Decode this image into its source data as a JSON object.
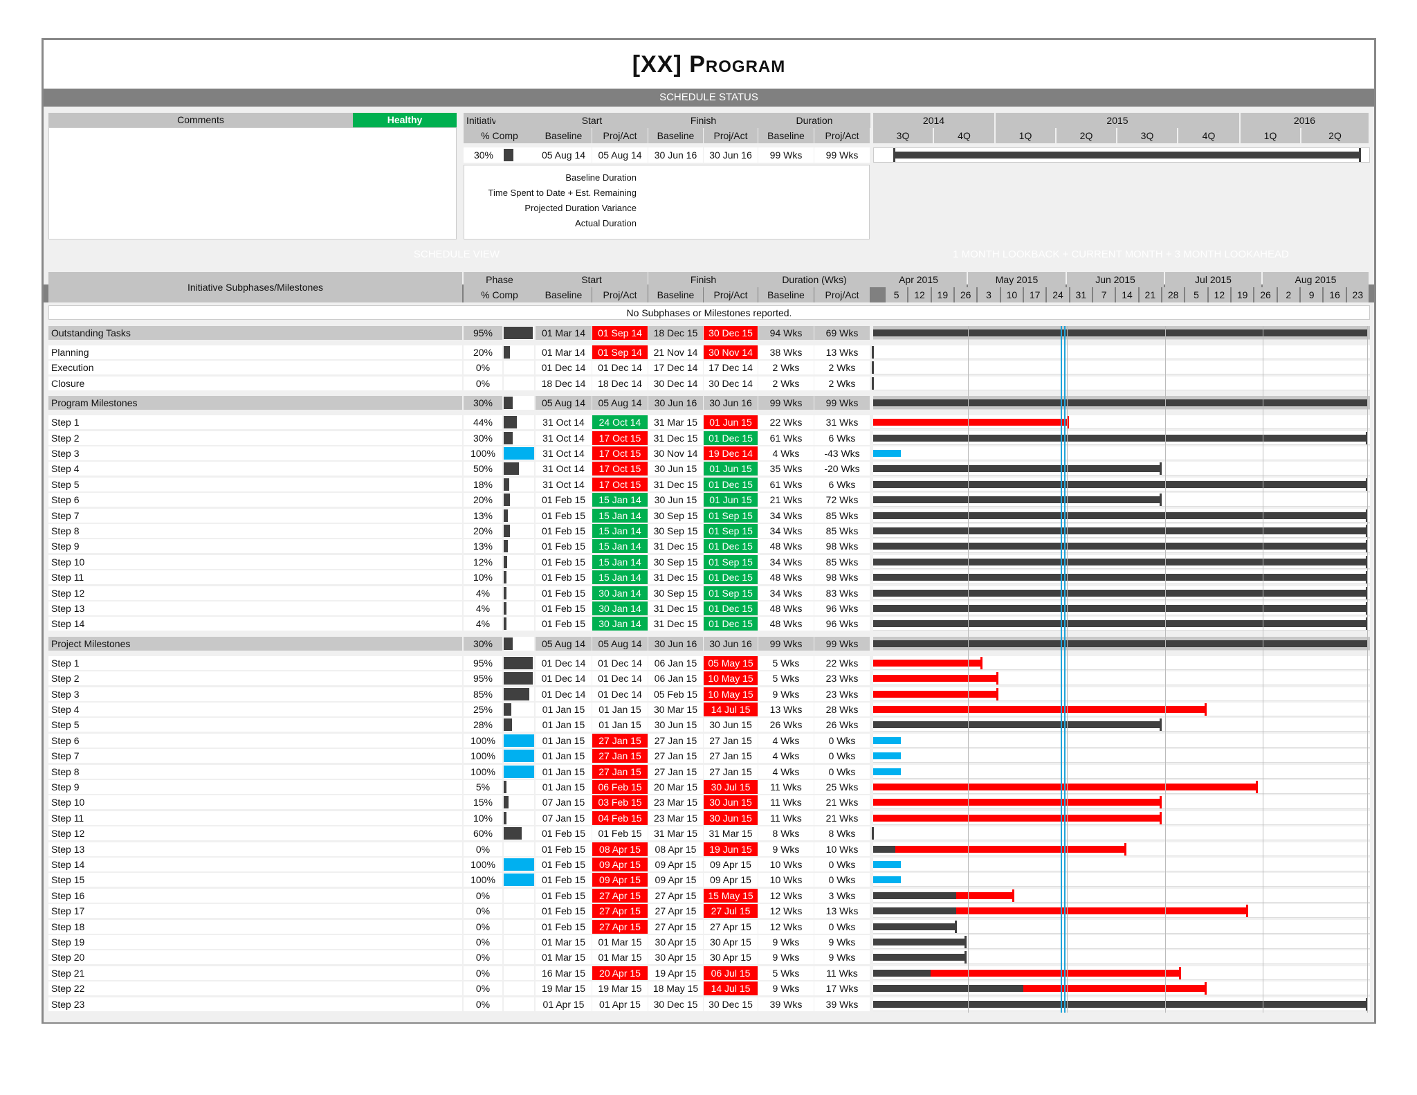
{
  "title_prefix": "[XX] ",
  "title_word": "Program",
  "schedule_status_label": "SCHEDULE STATUS",
  "schedule_view_label": "SCHEDULE VIEW",
  "lookahead_label": "1 MONTH LOOKBACK + CURRENT MONTH + 3 MONTH LOOKAHEAD",
  "status": {
    "comments_label": "Comments",
    "health": "Healthy",
    "h_initiative": "Initiative",
    "h_pct": "% Comp",
    "h_start": "Start",
    "h_finish": "Finish",
    "h_duration": "Duration",
    "h_baseline": "Baseline",
    "h_projact": "Proj/Act",
    "row": {
      "pct": "30%",
      "pct_val": 30,
      "start_b": "05 Aug 14",
      "start_p": "05 Aug 14",
      "finish_b": "30 Jun 16",
      "finish_p": "30 Jun 16",
      "dur_b": "99 Wks",
      "dur_p": "99 Wks"
    },
    "legend": [
      "Baseline Duration",
      "Time Spent to Date + Est. Remaining",
      "Projected Duration Variance",
      "Actual Duration"
    ],
    "years": [
      "2014",
      "2015",
      "2016"
    ],
    "quarters": [
      "3Q",
      "4Q",
      "1Q",
      "2Q",
      "3Q",
      "4Q",
      "1Q",
      "2Q"
    ]
  },
  "view": {
    "h_sub": "Initiative Subphases/Milestones",
    "h_phase": "Phase",
    "h_pct": "% Comp",
    "h_start": "Start",
    "h_finish": "Finish",
    "h_duration": "Duration (Wks)",
    "h_baseline": "Baseline",
    "h_projact": "Proj/Act",
    "no_sub": "No Subphases or Milestones reported.",
    "months": [
      "Apr 2015",
      "May 2015",
      "Jun 2015",
      "Jul 2015",
      "Aug 2015"
    ],
    "weeks": [
      "5",
      "12",
      "19",
      "26",
      "3",
      "10",
      "17",
      "24",
      "31",
      "7",
      "14",
      "21",
      "28",
      "5",
      "12",
      "19",
      "26",
      "2",
      "9",
      "16",
      "23"
    ]
  },
  "groups": [
    {
      "name": "Outstanding Tasks",
      "pct": "95%",
      "p": 95,
      "sb": "01 Mar 14",
      "sp": "01 Sep 14",
      "spc": "red",
      "fb": "18 Dec 15",
      "fp": "30 Dec 15",
      "fpc": "red",
      "db": "94 Wks",
      "dp": "69 Wks",
      "rows": [
        {
          "name": "Planning",
          "pct": "20%",
          "p": 20,
          "sb": "01 Mar 14",
          "sp": "01 Sep 14",
          "spc": "red",
          "fb": "21 Nov 14",
          "fp": "30 Nov 14",
          "fpc": "red",
          "db": "38 Wks",
          "dp": "13 Wks"
        },
        {
          "name": "Execution",
          "pct": "0%",
          "p": 0,
          "sb": "01 Dec 14",
          "sp": "01 Dec 14",
          "spc": "",
          "fb": "17 Dec 14",
          "fp": "17 Dec 14",
          "fpc": "",
          "db": "2 Wks",
          "dp": "2 Wks"
        },
        {
          "name": "Closure",
          "pct": "0%",
          "p": 0,
          "sb": "18 Dec 14",
          "sp": "18 Dec 14",
          "spc": "",
          "fb": "30 Dec 14",
          "fp": "30 Dec 14",
          "fpc": "",
          "db": "2 Wks",
          "dp": "2 Wks"
        }
      ]
    },
    {
      "name": "Program Milestones",
      "pct": "30%",
      "p": 30,
      "sb": "05 Aug 14",
      "sp": "05 Aug 14",
      "spc": "",
      "fb": "30 Jun 16",
      "fp": "30 Jun 16",
      "fpc": "",
      "db": "99 Wks",
      "dp": "99 Wks",
      "rows": [
        {
          "name": "Step 1",
          "pct": "44%",
          "p": 44,
          "sb": "31 Oct 14",
          "sp": "24 Oct 14",
          "spc": "grn",
          "fb": "31 Mar 15",
          "fp": "01 Jun 15",
          "fpc": "red",
          "db": "22 Wks",
          "dp": "31 Wks"
        },
        {
          "name": "Step 2",
          "pct": "30%",
          "p": 30,
          "sb": "31 Oct 14",
          "sp": "17 Oct 15",
          "spc": "red",
          "fb": "31 Dec 15",
          "fp": "01 Dec 15",
          "fpc": "grn",
          "db": "61 Wks",
          "dp": "6 Wks"
        },
        {
          "name": "Step 3",
          "pct": "100%",
          "p": 100,
          "sb": "31 Oct 14",
          "sp": "17 Oct 15",
          "spc": "red",
          "fb": "30 Nov 14",
          "fp": "19 Dec 14",
          "fpc": "red",
          "db": "4 Wks",
          "dp": "-43 Wks"
        },
        {
          "name": "Step 4",
          "pct": "50%",
          "p": 50,
          "sb": "31 Oct 14",
          "sp": "17 Oct 15",
          "spc": "red",
          "fb": "30 Jun 15",
          "fp": "01 Jun 15",
          "fpc": "grn",
          "db": "35 Wks",
          "dp": "-20 Wks"
        },
        {
          "name": "Step 5",
          "pct": "18%",
          "p": 18,
          "sb": "31 Oct 14",
          "sp": "17 Oct 15",
          "spc": "red",
          "fb": "31 Dec 15",
          "fp": "01 Dec 15",
          "fpc": "grn",
          "db": "61 Wks",
          "dp": "6 Wks"
        },
        {
          "name": "Step 6",
          "pct": "20%",
          "p": 20,
          "sb": "01 Feb 15",
          "sp": "15 Jan 14",
          "spc": "grn",
          "fb": "30 Jun 15",
          "fp": "01 Jun 15",
          "fpc": "grn",
          "db": "21 Wks",
          "dp": "72 Wks"
        },
        {
          "name": "Step 7",
          "pct": "13%",
          "p": 13,
          "sb": "01 Feb 15",
          "sp": "15 Jan 14",
          "spc": "grn",
          "fb": "30 Sep 15",
          "fp": "01 Sep 15",
          "fpc": "grn",
          "db": "34 Wks",
          "dp": "85 Wks"
        },
        {
          "name": "Step 8",
          "pct": "20%",
          "p": 20,
          "sb": "01 Feb 15",
          "sp": "15 Jan 14",
          "spc": "grn",
          "fb": "30 Sep 15",
          "fp": "01 Sep 15",
          "fpc": "grn",
          "db": "34 Wks",
          "dp": "85 Wks"
        },
        {
          "name": "Step 9",
          "pct": "13%",
          "p": 13,
          "sb": "01 Feb 15",
          "sp": "15 Jan 14",
          "spc": "grn",
          "fb": "31 Dec 15",
          "fp": "01 Dec 15",
          "fpc": "grn",
          "db": "48 Wks",
          "dp": "98 Wks"
        },
        {
          "name": "Step 10",
          "pct": "12%",
          "p": 12,
          "sb": "01 Feb 15",
          "sp": "15 Jan 14",
          "spc": "grn",
          "fb": "30 Sep 15",
          "fp": "01 Sep 15",
          "fpc": "grn",
          "db": "34 Wks",
          "dp": "85 Wks"
        },
        {
          "name": "Step 11",
          "pct": "10%",
          "p": 10,
          "sb": "01 Feb 15",
          "sp": "15 Jan 14",
          "spc": "grn",
          "fb": "31 Dec 15",
          "fp": "01 Dec 15",
          "fpc": "grn",
          "db": "48 Wks",
          "dp": "98 Wks"
        },
        {
          "name": "Step 12",
          "pct": "4%",
          "p": 4,
          "sb": "01 Feb 15",
          "sp": "30 Jan 14",
          "spc": "grn",
          "fb": "30 Sep 15",
          "fp": "01 Sep 15",
          "fpc": "grn",
          "db": "34 Wks",
          "dp": "83 Wks"
        },
        {
          "name": "Step 13",
          "pct": "4%",
          "p": 4,
          "sb": "01 Feb 15",
          "sp": "30 Jan 14",
          "spc": "grn",
          "fb": "31 Dec 15",
          "fp": "01 Dec 15",
          "fpc": "grn",
          "db": "48 Wks",
          "dp": "96 Wks"
        },
        {
          "name": "Step 14",
          "pct": "4%",
          "p": 4,
          "sb": "01 Feb 15",
          "sp": "30 Jan 14",
          "spc": "grn",
          "fb": "31 Dec 15",
          "fp": "01 Dec 15",
          "fpc": "grn",
          "db": "48 Wks",
          "dp": "96 Wks"
        }
      ]
    },
    {
      "name": "Project Milestones",
      "pct": "30%",
      "p": 30,
      "sb": "05 Aug 14",
      "sp": "05 Aug 14",
      "spc": "",
      "fb": "30 Jun 16",
      "fp": "30 Jun 16",
      "fpc": "",
      "db": "99 Wks",
      "dp": "99 Wks",
      "rows": [
        {
          "name": "Step 1",
          "pct": "95%",
          "p": 95,
          "sb": "01 Dec 14",
          "sp": "01 Dec 14",
          "spc": "",
          "fb": "06 Jan 15",
          "fp": "05 May 15",
          "fpc": "red",
          "db": "5 Wks",
          "dp": "22 Wks"
        },
        {
          "name": "Step 2",
          "pct": "95%",
          "p": 95,
          "sb": "01 Dec 14",
          "sp": "01 Dec 14",
          "spc": "",
          "fb": "06 Jan 15",
          "fp": "10 May 15",
          "fpc": "red",
          "db": "5 Wks",
          "dp": "23 Wks"
        },
        {
          "name": "Step 3",
          "pct": "85%",
          "p": 85,
          "sb": "01 Dec 14",
          "sp": "01 Dec 14",
          "spc": "",
          "fb": "05 Feb 15",
          "fp": "10 May 15",
          "fpc": "red",
          "db": "9 Wks",
          "dp": "23 Wks"
        },
        {
          "name": "Step 4",
          "pct": "25%",
          "p": 25,
          "sb": "01 Jan 15",
          "sp": "01 Jan 15",
          "spc": "",
          "fb": "30 Mar 15",
          "fp": "14 Jul 15",
          "fpc": "red",
          "db": "13 Wks",
          "dp": "28 Wks"
        },
        {
          "name": "Step 5",
          "pct": "28%",
          "p": 28,
          "sb": "01 Jan 15",
          "sp": "01 Jan 15",
          "spc": "",
          "fb": "30 Jun 15",
          "fp": "30 Jun 15",
          "fpc": "",
          "db": "26 Wks",
          "dp": "26 Wks"
        },
        {
          "name": "Step 6",
          "pct": "100%",
          "p": 100,
          "sb": "01 Jan 15",
          "sp": "27 Jan 15",
          "spc": "red",
          "fb": "27 Jan 15",
          "fp": "27 Jan 15",
          "fpc": "",
          "db": "4 Wks",
          "dp": "0 Wks"
        },
        {
          "name": "Step 7",
          "pct": "100%",
          "p": 100,
          "sb": "01 Jan 15",
          "sp": "27 Jan 15",
          "spc": "red",
          "fb": "27 Jan 15",
          "fp": "27 Jan 15",
          "fpc": "",
          "db": "4 Wks",
          "dp": "0 Wks"
        },
        {
          "name": "Step 8",
          "pct": "100%",
          "p": 100,
          "sb": "01 Jan 15",
          "sp": "27 Jan 15",
          "spc": "red",
          "fb": "27 Jan 15",
          "fp": "27 Jan 15",
          "fpc": "",
          "db": "4 Wks",
          "dp": "0 Wks"
        },
        {
          "name": "Step 9",
          "pct": "5%",
          "p": 5,
          "sb": "01 Jan 15",
          "sp": "06 Feb 15",
          "spc": "red",
          "fb": "20 Mar 15",
          "fp": "30 Jul 15",
          "fpc": "red",
          "db": "11 Wks",
          "dp": "25 Wks"
        },
        {
          "name": "Step 10",
          "pct": "15%",
          "p": 15,
          "sb": "07 Jan 15",
          "sp": "03 Feb 15",
          "spc": "red",
          "fb": "23 Mar 15",
          "fp": "30 Jun 15",
          "fpc": "red",
          "db": "11 Wks",
          "dp": "21 Wks"
        },
        {
          "name": "Step 11",
          "pct": "10%",
          "p": 10,
          "sb": "07 Jan 15",
          "sp": "04 Feb 15",
          "spc": "red",
          "fb": "23 Mar 15",
          "fp": "30 Jun 15",
          "fpc": "red",
          "db": "11 Wks",
          "dp": "21 Wks"
        },
        {
          "name": "Step 12",
          "pct": "60%",
          "p": 60,
          "sb": "01 Feb 15",
          "sp": "01 Feb 15",
          "spc": "",
          "fb": "31 Mar 15",
          "fp": "31 Mar 15",
          "fpc": "",
          "db": "8 Wks",
          "dp": "8 Wks"
        },
        {
          "name": "Step 13",
          "pct": "0%",
          "p": 0,
          "sb": "01 Feb 15",
          "sp": "08 Apr 15",
          "spc": "red",
          "fb": "08 Apr 15",
          "fp": "19 Jun 15",
          "fpc": "red",
          "db": "9 Wks",
          "dp": "10 Wks"
        },
        {
          "name": "Step 14",
          "pct": "100%",
          "p": 100,
          "sb": "01 Feb 15",
          "sp": "09 Apr 15",
          "spc": "red",
          "fb": "09 Apr 15",
          "fp": "09 Apr 15",
          "fpc": "",
          "db": "10 Wks",
          "dp": "0 Wks"
        },
        {
          "name": "Step 15",
          "pct": "100%",
          "p": 100,
          "sb": "01 Feb 15",
          "sp": "09 Apr 15",
          "spc": "red",
          "fb": "09 Apr 15",
          "fp": "09 Apr 15",
          "fpc": "",
          "db": "10 Wks",
          "dp": "0 Wks"
        },
        {
          "name": "Step 16",
          "pct": "0%",
          "p": 0,
          "sb": "01 Feb 15",
          "sp": "27 Apr 15",
          "spc": "red",
          "fb": "27 Apr 15",
          "fp": "15 May 15",
          "fpc": "red",
          "db": "12 Wks",
          "dp": "3 Wks"
        },
        {
          "name": "Step 17",
          "pct": "0%",
          "p": 0,
          "sb": "01 Feb 15",
          "sp": "27 Apr 15",
          "spc": "red",
          "fb": "27 Apr 15",
          "fp": "27 Jul 15",
          "fpc": "red",
          "db": "12 Wks",
          "dp": "13 Wks"
        },
        {
          "name": "Step 18",
          "pct": "0%",
          "p": 0,
          "sb": "01 Feb 15",
          "sp": "27 Apr 15",
          "spc": "red",
          "fb": "27 Apr 15",
          "fp": "27 Apr 15",
          "fpc": "",
          "db": "12 Wks",
          "dp": "0 Wks"
        },
        {
          "name": "Step 19",
          "pct": "0%",
          "p": 0,
          "sb": "01 Mar 15",
          "sp": "01 Mar 15",
          "spc": "",
          "fb": "30 Apr 15",
          "fp": "30 Apr 15",
          "fpc": "",
          "db": "9 Wks",
          "dp": "9 Wks"
        },
        {
          "name": "Step 20",
          "pct": "0%",
          "p": 0,
          "sb": "01 Mar 15",
          "sp": "01 Mar 15",
          "spc": "",
          "fb": "30 Apr 15",
          "fp": "30 Apr 15",
          "fpc": "",
          "db": "9 Wks",
          "dp": "9 Wks"
        },
        {
          "name": "Step 21",
          "pct": "0%",
          "p": 0,
          "sb": "16 Mar 15",
          "sp": "20 Apr 15",
          "spc": "red",
          "fb": "19 Apr 15",
          "fp": "06 Jul 15",
          "fpc": "red",
          "db": "5 Wks",
          "dp": "11 Wks"
        },
        {
          "name": "Step 22",
          "pct": "0%",
          "p": 0,
          "sb": "19 Mar 15",
          "sp": "19 Mar 15",
          "spc": "",
          "fb": "18 May 15",
          "fp": "14 Jul 15",
          "fpc": "red",
          "db": "9 Wks",
          "dp": "17 Wks"
        },
        {
          "name": "Step 23",
          "pct": "0%",
          "p": 0,
          "sb": "01 Apr 15",
          "sp": "01 Apr 15",
          "spc": "",
          "fb": "30 Dec 15",
          "fp": "30 Dec 15",
          "fpc": "",
          "db": "39 Wks",
          "dp": "39 Wks"
        }
      ]
    }
  ],
  "colors": {
    "red": "#ff0000",
    "green": "#00b050",
    "dark": "#404040",
    "complete": "#00b0f0",
    "today": "#1fa3d8"
  }
}
